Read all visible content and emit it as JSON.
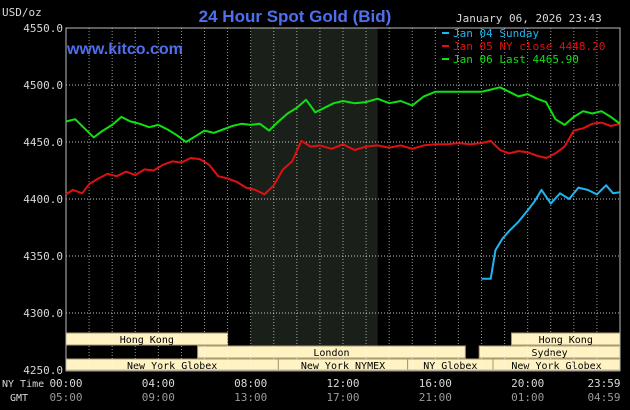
{
  "header": {
    "title": "24 Hour Spot Gold (Bid)",
    "unit": "USD/oz",
    "site": "www.kitco.com",
    "timestamp": "January 06, 2026 23:43"
  },
  "colors": {
    "background": "#000000",
    "title": "#4f6ff0",
    "site": "#4f6ff0",
    "grid": "#ffffff",
    "night_band": "#1a2019",
    "jan04": "#1fb6f0",
    "jan05": "#e01010",
    "jan06": "#10e010",
    "session_box_fill": "#fff3c4",
    "session_box_border": "#a89a70",
    "text": "#d8d8d8"
  },
  "legend": [
    {
      "text": "Jan 04 Sunday",
      "color": "#1fb6f0"
    },
    {
      "text": "Jan 05 NY close 4448.20",
      "color": "#e01010"
    },
    {
      "text": "Jan 06 Last 4465.90",
      "color": "#10e010"
    }
  ],
  "axis_rows": {
    "ny_label": "NY Time",
    "gmt_label": "GMT",
    "ny_ticks": [
      "00:00",
      "04:00",
      "08:00",
      "12:00",
      "16:00",
      "20:00",
      "23:59"
    ],
    "gmt_ticks": [
      "05:00",
      "09:00",
      "13:00",
      "17:00",
      "21:00",
      "01:00",
      "04:59"
    ]
  },
  "sessions": [
    {
      "name": "Hong Kong",
      "start": 0,
      "end": 7,
      "row": 0
    },
    {
      "name": "London",
      "start": 5.7,
      "end": 17.3,
      "row": 1
    },
    {
      "name": "New York Globex",
      "start": 0,
      "end": 9.2,
      "row": 2
    },
    {
      "name": "New York NYMEX",
      "start": 9.2,
      "end": 14.8,
      "row": 2
    },
    {
      "name": "NY Globex",
      "start": 14.8,
      "end": 18.5,
      "row": 2
    },
    {
      "name": "Hong Kong",
      "start": 19.3,
      "end": 24,
      "row": 0
    },
    {
      "name": "Sydney",
      "start": 17.9,
      "end": 24,
      "row": 1
    },
    {
      "name": "New York Globex",
      "start": 18.5,
      "end": 24,
      "row": 2
    }
  ],
  "chart_data": {
    "type": "line",
    "title": "24 Hour Spot Gold (Bid)",
    "ylabel": "USD/oz",
    "xlabel": "",
    "xlim": [
      0,
      24
    ],
    "ylim": [
      4250,
      4550
    ],
    "yticks": [
      4250.0,
      4300.0,
      4350.0,
      4400.0,
      4450.0,
      4500.0,
      4550.0
    ],
    "ytick_labels": [
      "4250.0",
      "4300.0",
      "4350.0",
      "4400.0",
      "4450.0",
      "4500.0",
      "4550.0"
    ],
    "xticks": [
      0,
      4,
      8,
      12,
      16,
      20,
      24
    ],
    "grid": true,
    "legend_position": "top-right",
    "shaded_range": [
      8,
      13.5
    ],
    "series": [
      {
        "name": "Jan 04 Sunday",
        "color": "#1fb6f0",
        "x": [
          18.0,
          18.4,
          18.6,
          18.9,
          19.2,
          19.6,
          20.0,
          20.3,
          20.6,
          21.0,
          21.4,
          21.8,
          22.2,
          22.6,
          23.0,
          23.4,
          23.7,
          24.0
        ],
        "y": [
          4330,
          4330,
          4355,
          4365,
          4372,
          4380,
          4390,
          4398,
          4408,
          4396,
          4405,
          4400,
          4410,
          4408,
          4404,
          4412,
          4405,
          4406
        ]
      },
      {
        "name": "Jan 05 NY close 4448.20",
        "color": "#e01010",
        "x": [
          0.0,
          0.3,
          0.7,
          1.0,
          1.4,
          1.8,
          2.2,
          2.6,
          3.0,
          3.4,
          3.8,
          4.2,
          4.6,
          5.0,
          5.4,
          5.8,
          6.2,
          6.6,
          7.0,
          7.4,
          7.8,
          8.2,
          8.6,
          9.0,
          9.4,
          9.8,
          10.2,
          10.6,
          11.0,
          11.5,
          12.0,
          12.5,
          13.0,
          13.5,
          14.0,
          14.5,
          15.0,
          15.5,
          16.0,
          16.5,
          17.0,
          17.5,
          18.0,
          18.4,
          18.8,
          19.2,
          19.6,
          20.0,
          20.4,
          20.8,
          21.2,
          21.6,
          22.0,
          22.4,
          22.8,
          23.2,
          23.6,
          24.0
        ],
        "y": [
          4404,
          4408,
          4405,
          4413,
          4418,
          4422,
          4420,
          4424,
          4421,
          4426,
          4425,
          4430,
          4433,
          4432,
          4436,
          4435,
          4430,
          4420,
          4418,
          4415,
          4410,
          4408,
          4404,
          4412,
          4426,
          4433,
          4451,
          4446,
          4447,
          4444,
          4448,
          4443,
          4446,
          4447,
          4445,
          4447,
          4444,
          4447,
          4448,
          4448,
          4449,
          4448,
          4449,
          4451,
          4443,
          4440,
          4442,
          4441,
          4438,
          4436,
          4440,
          4446,
          4460,
          4462,
          4466,
          4467,
          4464,
          4466
        ]
      },
      {
        "name": "Jan 06 Last 4465.90",
        "color": "#10e010",
        "x": [
          0.0,
          0.4,
          0.8,
          1.2,
          1.6,
          2.0,
          2.4,
          2.8,
          3.2,
          3.6,
          4.0,
          4.4,
          4.8,
          5.2,
          5.6,
          6.0,
          6.4,
          6.8,
          7.2,
          7.6,
          8.0,
          8.4,
          8.8,
          9.2,
          9.6,
          10.0,
          10.4,
          10.8,
          11.2,
          11.6,
          12.0,
          12.5,
          13.0,
          13.5,
          14.0,
          14.5,
          15.0,
          15.5,
          16.0,
          16.5,
          17.0,
          17.5,
          18.0,
          18.4,
          18.8,
          19.2,
          19.6,
          20.0,
          20.4,
          20.8,
          21.2,
          21.6,
          22.0,
          22.4,
          22.8,
          23.2,
          23.6,
          24.0
        ],
        "y": [
          4468,
          4470,
          4462,
          4454,
          4460,
          4465,
          4472,
          4468,
          4466,
          4463,
          4465,
          4461,
          4456,
          4450,
          4455,
          4460,
          4458,
          4461,
          4464,
          4466,
          4465,
          4466,
          4460,
          4468,
          4475,
          4480,
          4487,
          4476,
          4480,
          4484,
          4486,
          4484,
          4485,
          4488,
          4484,
          4486,
          4482,
          4490,
          4494,
          4494,
          4494,
          4494,
          4494,
          4496,
          4498,
          4494,
          4490,
          4492,
          4488,
          4485,
          4470,
          4465,
          4472,
          4477,
          4475,
          4477,
          4472,
          4466
        ]
      }
    ]
  }
}
